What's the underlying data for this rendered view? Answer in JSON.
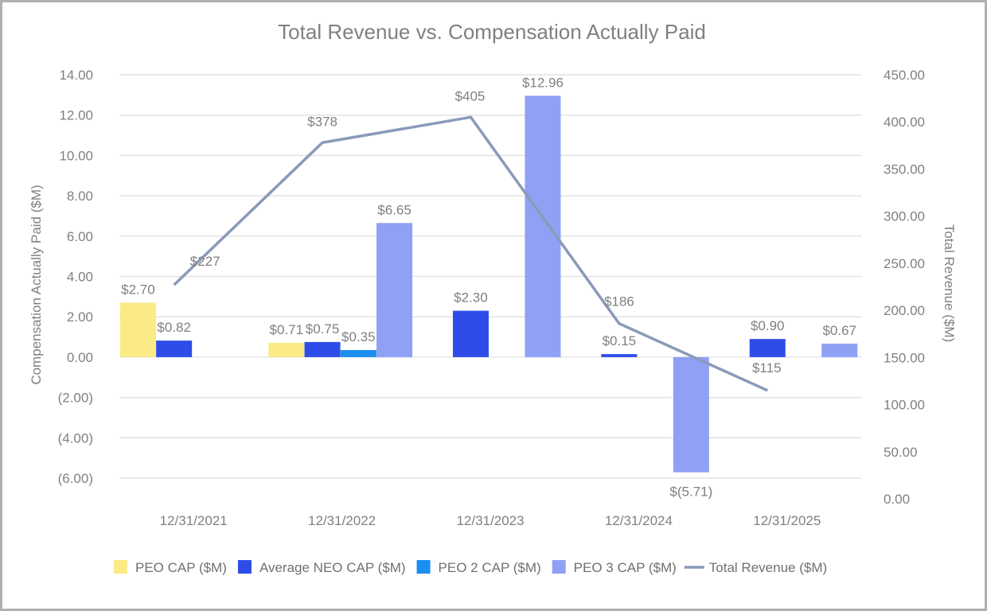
{
  "chart_data": {
    "type": "bar",
    "title": "Total Revenue vs. Compensation Actually Paid",
    "categories": [
      "12/31/2021",
      "12/31/2022",
      "12/31/2023",
      "12/31/2024",
      "12/31/2025"
    ],
    "ylabel": "Compensation Actually Paid ($M)",
    "ylabel_right": "Total Revenue ($M)",
    "ylim": [
      -6,
      14
    ],
    "ylim_right": [
      0,
      450
    ],
    "yticks": [
      "(6.00)",
      "(4.00)",
      "(2.00)",
      "0.00",
      "2.00",
      "4.00",
      "6.00",
      "8.00",
      "10.00",
      "12.00",
      "14.00"
    ],
    "yticks_right": [
      "0.00",
      "50.00",
      "100.00",
      "150.00",
      "200.00",
      "250.00",
      "300.00",
      "350.00",
      "400.00",
      "450.00"
    ],
    "grid": true,
    "legend_position": "bottom",
    "series": [
      {
        "name": "PEO CAP ($M)",
        "kind": "bar",
        "color": "#fbeb86",
        "values": [
          2.7,
          0.71,
          null,
          null,
          null
        ],
        "labels": [
          "$2.70",
          "$0.71",
          "",
          "",
          ""
        ]
      },
      {
        "name": "Average NEO CAP ($M)",
        "kind": "bar",
        "color": "#2e4de8",
        "values": [
          0.82,
          0.75,
          2.3,
          0.15,
          0.9
        ],
        "labels": [
          "$0.82",
          "$0.75",
          "$2.30",
          "$0.15",
          "$0.90"
        ]
      },
      {
        "name": "PEO 2 CAP ($M)",
        "kind": "bar",
        "color": "#1a8ff0",
        "values": [
          null,
          0.35,
          null,
          null,
          null
        ],
        "labels": [
          "",
          "$0.35",
          "",
          "",
          ""
        ]
      },
      {
        "name": "PEO 3 CAP ($M)",
        "kind": "bar",
        "color": "#8fa0f5",
        "values": [
          null,
          6.65,
          12.96,
          -5.71,
          0.67
        ],
        "labels": [
          "",
          "$6.65",
          "$12.96",
          "$(5.71)",
          "$0.67"
        ]
      },
      {
        "name": "Total Revenue ($M)",
        "kind": "line",
        "axis": "right",
        "color": "#8a9ab8",
        "values": [
          227,
          378,
          405,
          186,
          115
        ],
        "labels": [
          "$227",
          "$378",
          "$405",
          "$186",
          "$115"
        ]
      }
    ]
  }
}
